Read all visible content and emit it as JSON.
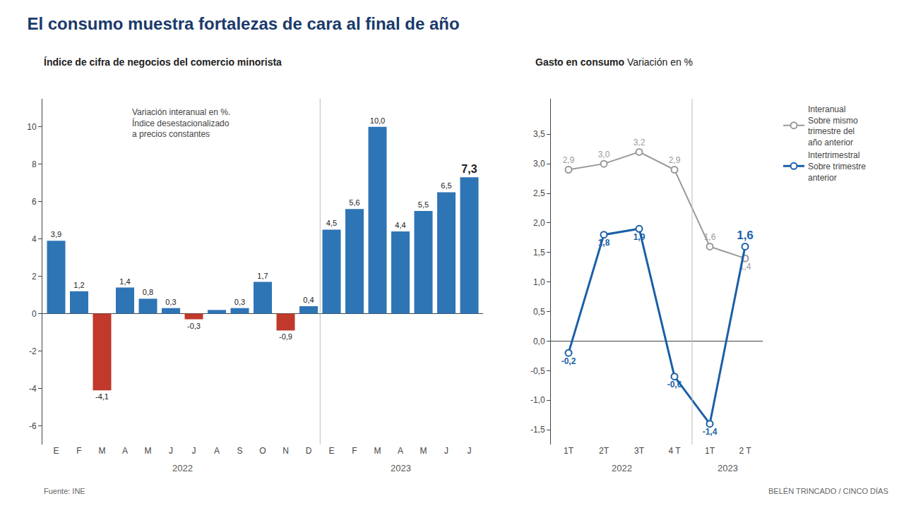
{
  "chart_data": [
    {
      "type": "bar",
      "title": "El consumo muestra fortalezas de cara al final de año",
      "subtitle": "Índice de cifra de negocios del comercio minorista",
      "categories": [
        "E",
        "F",
        "M",
        "A",
        "M",
        "J",
        "J",
        "A",
        "S",
        "O",
        "N",
        "D",
        "E",
        "F",
        "M",
        "A",
        "M",
        "J",
        "J"
      ],
      "values": [
        3.9,
        1.2,
        -4.1,
        1.4,
        0.8,
        0.3,
        -0.3,
        0.2,
        0.3,
        1.7,
        -0.9,
        0.4,
        4.5,
        5.6,
        10.0,
        4.4,
        5.5,
        6.5,
        7.3
      ],
      "value_labels": [
        "3,9",
        "1,2",
        "-4,1",
        "1,4",
        "0,8",
        "0,3",
        "-0,3",
        null,
        "0,3",
        "1,7",
        "-0,9",
        "0,4",
        "4,5",
        "5,6",
        "10,0",
        "4,4",
        "5,5",
        "6,5",
        "7,3"
      ],
      "colors": [
        "#2e75b6",
        "#2e75b6",
        "#c0392b",
        "#2e75b6",
        "#2e75b6",
        "#2e75b6",
        "#c0392b",
        "#2e75b6",
        "#2e75b6",
        "#2e75b6",
        "#c0392b",
        "#2e75b6",
        "#2e75b6",
        "#2e75b6",
        "#2e75b6",
        "#2e75b6",
        "#2e75b6",
        "#2e75b6",
        "#2e75b6"
      ],
      "data_labels": true,
      "ylim": [
        -7,
        11.5
      ],
      "yticks": [
        -6,
        -4,
        -2,
        0,
        2,
        4,
        6,
        8,
        10
      ],
      "grid": false,
      "annotations": [
        "2022",
        "2023",
        "Variación interanual en %.\nÍndice desestacionalizado\na precios constantes"
      ]
    },
    {
      "type": "line",
      "title": "Gasto en consumo",
      "subtitle": "Variación en %",
      "categories": [
        "1T",
        "2T",
        "3T",
        "4 T",
        "1T",
        "2 T"
      ],
      "series": [
        {
          "name": "Interanual\nSobre mismo\ntrimestre del\naño anterior",
          "color": "#999999",
          "marker": "circle",
          "values": [
            2.9,
            3.0,
            3.2,
            2.9,
            1.6,
            1.4
          ],
          "value_labels": [
            "2,9",
            "3,0",
            "3,2",
            "2,9",
            "1,6",
            "1,4"
          ]
        },
        {
          "name": "Intertrimestral\nSobre trimestre\nanterior",
          "color": "#1a5fa8",
          "marker": "circle",
          "values": [
            -0.2,
            1.8,
            1.9,
            -0.6,
            -1.4,
            1.6
          ],
          "value_labels": [
            "-0,2",
            "1,8",
            "1,9",
            "-0,6",
            "-1,4",
            "1,6"
          ]
        }
      ],
      "data_labels": true,
      "ylim": [
        -1.75,
        4.1
      ],
      "yticks": [
        {
          "value": -1.5,
          "label": "-1,5"
        },
        {
          "value": -1.0,
          "label": "-1,0"
        },
        {
          "value": -0.5,
          "label": "-0,5"
        },
        {
          "value": 0.0,
          "label": "0,0"
        },
        {
          "value": 0.5,
          "label": "0,5"
        },
        {
          "value": 1.0,
          "label": "1,0"
        },
        {
          "value": 1.5,
          "label": "1,5"
        },
        {
          "value": 2.0,
          "label": "2,0"
        },
        {
          "value": 2.5,
          "label": "2,5"
        },
        {
          "value": 3.0,
          "label": "3,0"
        },
        {
          "value": 3.5,
          "label": "3,5"
        }
      ],
      "grid": false,
      "legend": "right",
      "annotations": [
        "2022",
        "2023",
        "Fuente: INE",
        "BELÉN TRINCADO / CINCO DÍAS"
      ]
    }
  ]
}
